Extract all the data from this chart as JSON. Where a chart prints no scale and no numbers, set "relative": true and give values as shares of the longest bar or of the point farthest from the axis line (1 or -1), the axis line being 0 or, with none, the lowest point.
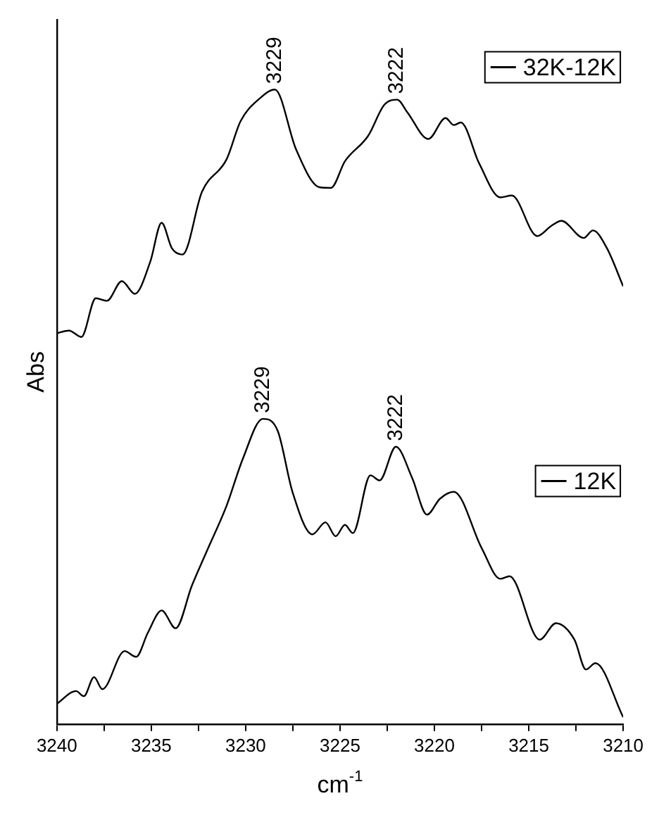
{
  "chart_data": {
    "type": "line",
    "relative": true,
    "xlabel": "cm$^{-1}$",
    "ylabel": "Abs",
    "xlim": [
      3240,
      3210
    ],
    "xticks": [
      3240,
      {
        "value": 3237.5,
        "label": null
      },
      3235,
      {
        "value": 3232.5,
        "label": null
      },
      3230,
      {
        "value": 3227.5,
        "label": null
      },
      3225,
      {
        "value": 3222.5,
        "label": null
      },
      3220,
      {
        "value": 3217.5,
        "label": null
      },
      3215,
      {
        "value": 3212.5,
        "label": null
      },
      3210
    ],
    "grid": false,
    "legend": "right",
    "marker": "none",
    "line_style": "solid",
    "series": [
      {
        "name": "32K-12K",
        "color": "#000000",
        "x": [
          3240,
          3239.36,
          3238.7,
          3237.94,
          3237.35,
          3236.56,
          3235.87,
          3235.06,
          3234.45,
          3233.91,
          3233.34,
          3232.31,
          3231.01,
          3230.27,
          3229.29,
          3228.45,
          3227.32,
          3226.09,
          3225.48,
          3224.74,
          3223.51,
          3222.65,
          3221.97,
          3221.43,
          3220.32,
          3219.41,
          3218.97,
          3218.6,
          3217.62,
          3216.51,
          3215.9,
          3214.55,
          3213.81,
          3213.27,
          3212.09,
          3211.6,
          3210.86,
          3210
        ],
        "values": [
          0.616,
          0.62,
          0.61,
          0.671,
          0.667,
          0.698,
          0.678,
          0.728,
          0.79,
          0.75,
          0.74,
          0.839,
          0.89,
          0.95,
          0.985,
          1,
          0.905,
          0.846,
          0.845,
          0.887,
          0.927,
          0.976,
          0.984,
          0.964,
          0.922,
          0.955,
          0.944,
          0.948,
          0.883,
          0.83,
          0.833,
          0.769,
          0.785,
          0.793,
          0.766,
          0.778,
          0.75,
          0.69
        ]
      },
      {
        "name": "12K",
        "color": "#000000",
        "x": [
          3240,
          3238.99,
          3238.57,
          3238.03,
          3237.59,
          3236.41,
          3235.8,
          3235.18,
          3234.45,
          3233.71,
          3232.85,
          3231.99,
          3231.01,
          3230.15,
          3229.09,
          3228.3,
          3227.52,
          3226.46,
          3225.77,
          3225.23,
          3224.74,
          3224.32,
          3223.39,
          3222.9,
          3222.04,
          3221.18,
          3220.39,
          3219.71,
          3218.97,
          3217.49,
          3216.51,
          3216.02,
          3214.42,
          3213.56,
          3212.58,
          3211.97,
          3211.47,
          3210
        ],
        "values": [
          0.032,
          0.052,
          0.044,
          0.074,
          0.055,
          0.115,
          0.106,
          0.144,
          0.179,
          0.151,
          0.218,
          0.277,
          0.344,
          0.418,
          0.481,
          0.462,
          0.366,
          0.299,
          0.318,
          0.296,
          0.314,
          0.301,
          0.392,
          0.384,
          0.437,
          0.388,
          0.33,
          0.355,
          0.366,
          0.277,
          0.229,
          0.233,
          0.133,
          0.159,
          0.133,
          0.086,
          0.096,
          0.011
        ]
      }
    ],
    "annotations": [
      {
        "text": "3229",
        "x": 3228.45,
        "y": 1
      },
      {
        "text": "3222",
        "x": 3221.97,
        "y": 0.984
      },
      {
        "text": "3229",
        "x": 3229.09,
        "y": 0.481
      },
      {
        "text": "3222",
        "x": 3222.04,
        "y": 0.437
      }
    ]
  }
}
